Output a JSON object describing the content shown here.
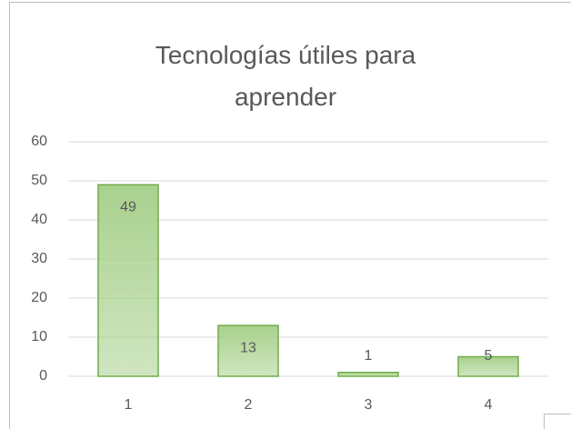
{
  "chart_data": {
    "type": "bar",
    "title": "Tecnologías útiles para aprender",
    "categories": [
      "1",
      "2",
      "3",
      "4"
    ],
    "values": [
      49,
      13,
      1,
      5
    ],
    "color": "#a9d18e",
    "ylim": [
      0,
      60
    ],
    "yticks": [
      0,
      10,
      20,
      30,
      40,
      50,
      60
    ],
    "grid": true
  }
}
